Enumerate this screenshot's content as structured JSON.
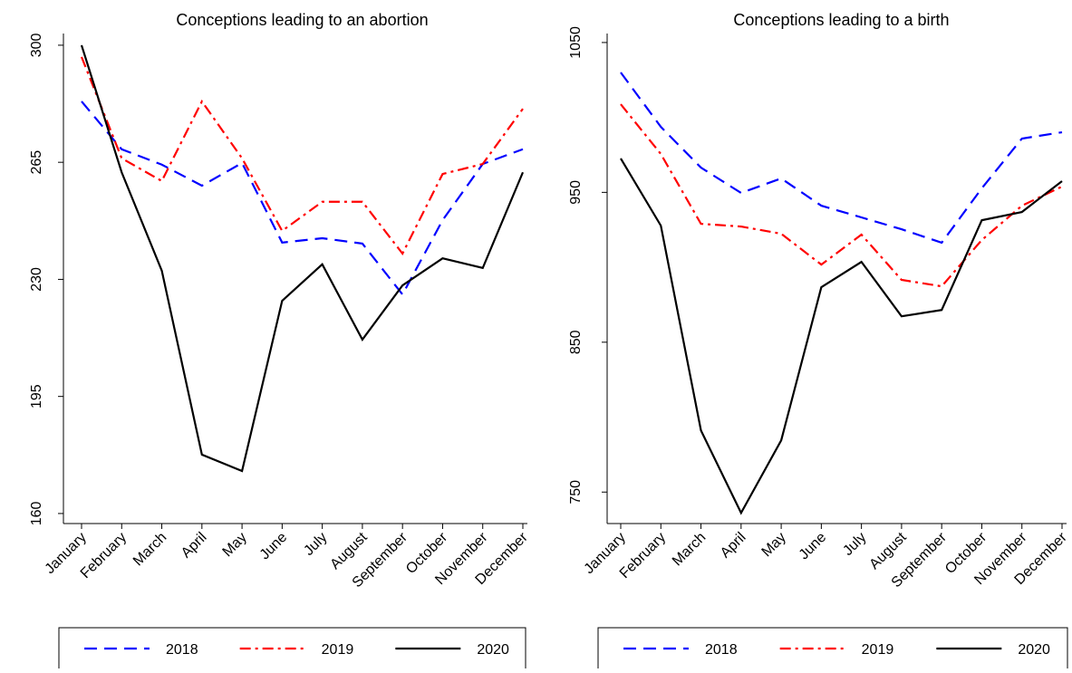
{
  "chart_data": [
    {
      "type": "line",
      "title": "Conceptions leading to an abortion",
      "categories": [
        "January",
        "February",
        "March",
        "April",
        "May",
        "June",
        "July",
        "August",
        "September",
        "October",
        "November",
        "December"
      ],
      "ylim": [
        157,
        303.5
      ],
      "yticks": [
        160,
        195,
        230,
        265,
        300
      ],
      "legend": "bottom",
      "series": [
        {
          "name": "2018",
          "color": "#0000ff",
          "linestyle": "dashed",
          "values": [
            283.2,
            268.9,
            264.3,
            258,
            264.8,
            241,
            242.3,
            240.7,
            225.5,
            247.7,
            264.5,
            268.9
          ]
        },
        {
          "name": "2019",
          "color": "#ff0000",
          "linestyle": "dashdot",
          "values": [
            296.5,
            266.2,
            259.4,
            283.2,
            266.2,
            244.5,
            253.2,
            253.2,
            237.7,
            261.5,
            264.5,
            281
          ]
        },
        {
          "name": "2020",
          "color": "#000000",
          "linestyle": "solid",
          "values": [
            300,
            262,
            232.6,
            177.6,
            172.7,
            223.6,
            234.5,
            212,
            228.2,
            236.3,
            233.4,
            262
          ]
        }
      ]
    },
    {
      "type": "line",
      "title": "Conceptions leading to a birth",
      "categories": [
        "January",
        "February",
        "March",
        "April",
        "May",
        "June",
        "July",
        "August",
        "September",
        "October",
        "November",
        "December"
      ],
      "ylim": [
        729,
        1056
      ],
      "yticks": [
        750,
        850,
        950,
        1050
      ],
      "legend": "bottom",
      "series": [
        {
          "name": "2018",
          "color": "#0000ff",
          "linestyle": "dashed",
          "values": [
            1030,
            993.7,
            966.5,
            949.6,
            959.3,
            941.1,
            933.3,
            925.4,
            916.4,
            952.7,
            985.9,
            990.1
          ]
        },
        {
          "name": "2019",
          "color": "#ff0000",
          "linestyle": "dashdot",
          "values": [
            1008.8,
            975.6,
            929,
            927.2,
            922.4,
            901.8,
            921.8,
            891.6,
            887.3,
            918.2,
            941.1,
            953.9
          ]
        },
        {
          "name": "2020",
          "color": "#000000",
          "linestyle": "solid",
          "values": [
            972.6,
            927.8,
            791.1,
            736.1,
            784.5,
            886.7,
            903.6,
            867.3,
            871.5,
            931.4,
            936.9,
            957.5
          ]
        }
      ]
    }
  ]
}
